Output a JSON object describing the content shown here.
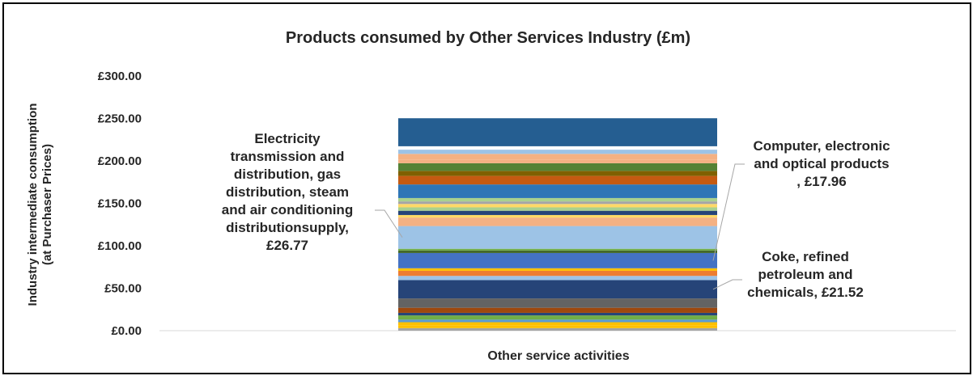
{
  "chart_data": {
    "type": "bar",
    "stacked": true,
    "title": "Products consumed by Other Services Industry (£m)",
    "ylabel_lines": [
      "Industry intermediate consumption",
      "(at Purchaser Prices)"
    ],
    "xlabel": "",
    "categories": [
      "Other service activities"
    ],
    "ylim": [
      0,
      300
    ],
    "y_ticks": [
      0,
      50,
      100,
      150,
      200,
      250,
      300
    ],
    "y_tick_labels": [
      "£0.00",
      "£50.00",
      "£100.00",
      "£150.00",
      "£200.00",
      "£250.00",
      "£300.00"
    ],
    "grid": false,
    "legend": "none",
    "series": [
      {
        "values": [
          3
        ],
        "color": "#a5a5a5"
      },
      {
        "values": [
          3
        ],
        "color": "#ffc000"
      },
      {
        "values": [
          4
        ],
        "color": "#ffc000"
      },
      {
        "values": [
          3
        ],
        "color": "#5b9bd5"
      },
      {
        "values": [
          5
        ],
        "color": "#70ad47"
      },
      {
        "values": [
          3
        ],
        "color": "#264478"
      },
      {
        "values": [
          6
        ],
        "color": "#9e480e"
      },
      {
        "values": [
          3
        ],
        "color": "#636363"
      },
      {
        "values": [
          8
        ],
        "color": "#636363"
      },
      {
        "values": [
          21.52
        ],
        "color": "#264478"
      },
      {
        "values": [
          5
        ],
        "color": "#9dc3e6"
      },
      {
        "values": [
          6
        ],
        "color": "#ed7d31"
      },
      {
        "values": [
          3
        ],
        "color": "#ffc000"
      },
      {
        "values": [
          17.96
        ],
        "color": "#4472c4"
      },
      {
        "values": [
          3
        ],
        "color": "#43682b"
      },
      {
        "values": [
          2
        ],
        "color": "#70ad47"
      },
      {
        "values": [
          26.77
        ],
        "color": "#9dc3e6"
      },
      {
        "values": [
          10
        ],
        "color": "#f4b183"
      },
      {
        "values": [
          3
        ],
        "color": "#ffd966"
      },
      {
        "values": [
          5
        ],
        "color": "#264478"
      },
      {
        "values": [
          4
        ],
        "color": "#a9d18e"
      },
      {
        "values": [
          4
        ],
        "color": "#ffd966"
      },
      {
        "values": [
          3
        ],
        "color": "#a5a5a5"
      },
      {
        "values": [
          4
        ],
        "color": "#a9d18e"
      },
      {
        "values": [
          16
        ],
        "color": "#2e75b6"
      },
      {
        "values": [
          10
        ],
        "color": "#c55a11"
      },
      {
        "values": [
          6
        ],
        "color": "#7f6000"
      },
      {
        "values": [
          9
        ],
        "color": "#548235"
      },
      {
        "values": [
          4
        ],
        "color": "#f4b183"
      },
      {
        "values": [
          7
        ],
        "color": "#f4b183"
      },
      {
        "values": [
          5
        ],
        "color": "#9dc3e6"
      },
      {
        "values": [
          4
        ],
        "color": "#ffffff"
      },
      {
        "values": [
          33
        ],
        "color": "#255e91"
      }
    ],
    "annotations": [
      {
        "lines": [
          "Electricity",
          "transmission and",
          "distribution, gas",
          "distribution, steam",
          "and air conditioning",
          "distributionsupply,",
          "£26.77"
        ],
        "series_index": 16
      },
      {
        "lines": [
          "Computer, electronic",
          "and optical products",
          ", £17.96"
        ],
        "series_index": 13
      },
      {
        "lines": [
          "Coke, refined",
          "petroleum and",
          "chemicals, £21.52"
        ],
        "series_index": 9
      }
    ]
  }
}
